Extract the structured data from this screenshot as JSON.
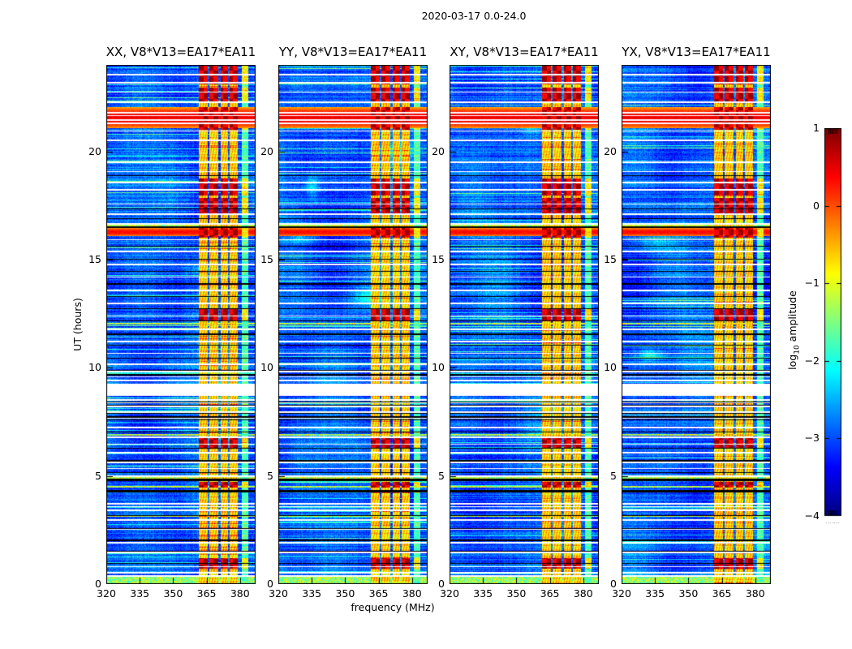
{
  "figure": {
    "suptitle": "2020-03-17 0.0-24.0",
    "xlabel": "frequency (MHz)",
    "ylabel": "UT (hours)",
    "colorbar_label": {
      "prefix": "log",
      "sub": "10",
      "suffix": " amplitude"
    }
  },
  "chart_data": {
    "type": "heatmap",
    "title": "2020-03-17 0.0-24.0",
    "description": "Four dynamic-spectrum (waterfall) panels of cross-correlation amplitude vs frequency and time, jet colormap, shared colorbar",
    "panels": [
      {
        "key": "xx",
        "title": "XX, V8*V13=EA17*EA11",
        "seed": 11
      },
      {
        "key": "yy",
        "title": "YY, V8*V13=EA17*EA11",
        "seed": 47
      },
      {
        "key": "xy",
        "title": "XY, V8*V13=EA17*EA11",
        "seed": 83
      },
      {
        "key": "yx",
        "title": "YX, V8*V13=EA17*EA11",
        "seed": 129
      }
    ],
    "x_axis": {
      "label": "frequency (MHz)",
      "range_mhz": [
        320,
        387
      ],
      "ticks": [
        320,
        335,
        350,
        365,
        380
      ]
    },
    "y_axis": {
      "label": "UT (hours)",
      "range_hours": [
        0,
        24
      ],
      "ticks": [
        0,
        5,
        10,
        15,
        20
      ]
    },
    "colorbar": {
      "label": "log10 amplitude",
      "colormap": "jet",
      "range": [
        -4,
        1
      ],
      "ticks": [
        1,
        0,
        -1,
        -2,
        -3,
        -4
      ],
      "tick_labels": [
        "1",
        "0",
        "−1",
        "−2",
        "−3",
        "−4"
      ]
    },
    "features": {
      "background_level_log10": -3.0,
      "rfi_stripes_mhz": [
        [
          361.4,
          365.6
        ],
        [
          366.4,
          370.4
        ],
        [
          371.3,
          374.5
        ],
        [
          375.3,
          378.9
        ]
      ],
      "weak_stripe_mhz": [
        380.9,
        383.7
      ],
      "solar_burst_hours": {
        "start": 21.08,
        "peak": 21.55,
        "end": 22.05
      },
      "secondary_burst_hours": {
        "start": 16.1,
        "peak": 16.27,
        "end": 16.48
      },
      "white_gap_hours": [
        8.75,
        9.26
      ],
      "rfi_hot_periods_hours": [
        [
          23.1,
          24.0
        ],
        [
          22.3,
          22.95
        ],
        [
          21.0,
          22.05
        ],
        [
          17.95,
          18.75
        ],
        [
          17.15,
          17.85
        ],
        [
          16.0,
          16.55
        ],
        [
          12.15,
          12.7
        ],
        [
          6.25,
          6.8
        ],
        [
          4.45,
          4.72
        ],
        [
          0.7,
          1.2
        ]
      ],
      "white_lines_hours": [
        23.6,
        23.2,
        22.75,
        22.3,
        21.82,
        21.66,
        21.5,
        21.34,
        20.95,
        20.55,
        19.55,
        19.1,
        18.6,
        18.25,
        17.6,
        17.12,
        16.7,
        15.95,
        15.4,
        14.8,
        14.2,
        13.6,
        13.0,
        12.4,
        11.8,
        11.25,
        10.7,
        10.2,
        9.85,
        9.6,
        9.45,
        8.55,
        8.4,
        8.25,
        8.0,
        7.7,
        7.28,
        6.82,
        6.5,
        6.12,
        5.66,
        5.36,
        5.02,
        3.75,
        3.6,
        3.45,
        3.0,
        2.55,
        1.95,
        1.5,
        0.82,
        0.55,
        0.42
      ],
      "black_lines_hours": [
        18.9,
        17.35,
        16.9,
        16.55,
        15.62,
        15.05,
        14.47,
        13.9,
        13.32,
        12.75,
        12.18,
        11.6,
        11.05,
        10.48,
        9.9,
        9.72,
        8.45,
        8.3,
        7.9,
        7.75,
        7.6,
        7.05,
        6.3,
        5.73,
        5.18,
        3.18,
        2.6,
        2.05,
        1.52,
        0.98
      ],
      "black_thick_lines_hours": [
        4.85,
        4.3
      ],
      "bright_speckle_rows_hours": [
        16.62,
        12.08,
        6.95,
        4.95,
        4.55,
        3.2,
        0.25,
        0.12
      ]
    }
  }
}
